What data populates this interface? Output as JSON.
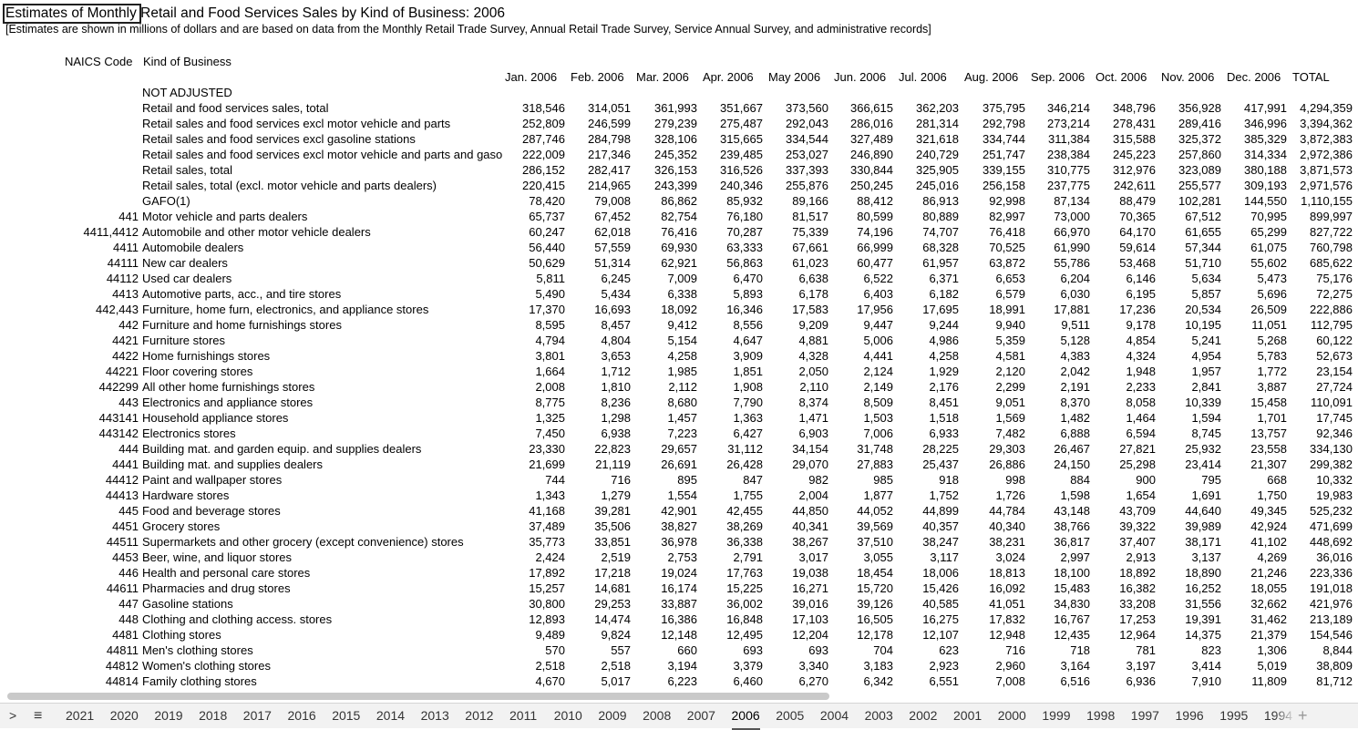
{
  "title": "Estimates of Monthly Retail and Food Services Sales by Kind of Business: 2006",
  "subtitle": "[Estimates are shown in millions of dollars and are based on data from the Monthly Retail Trade Survey, Annual Retail Trade Survey, Service Annual Survey, and administrative records]",
  "header": {
    "naics": "NAICS  Code",
    "kind": "Kind of Business",
    "months": [
      "Jan. 2006",
      "Feb. 2006",
      "Mar. 2006",
      "Apr. 2006",
      "May 2006",
      "Jun. 2006",
      "Jul. 2006",
      "Aug. 2006",
      "Sep. 2006",
      "Oct. 2006",
      "Nov. 2006",
      "Dec. 2006",
      "TOTAL"
    ]
  },
  "section_label": "NOT ADJUSTED",
  "rows": [
    {
      "code": "",
      "name": "Retail and food services sales, total",
      "values": [
        "318,546",
        "314,051",
        "361,993",
        "351,667",
        "373,560",
        "366,615",
        "362,203",
        "375,795",
        "346,214",
        "348,796",
        "356,928",
        "417,991",
        "4,294,359"
      ]
    },
    {
      "code": "",
      "name": "Retail sales and food services excl motor vehicle and parts",
      "values": [
        "252,809",
        "246,599",
        "279,239",
        "275,487",
        "292,043",
        "286,016",
        "281,314",
        "292,798",
        "273,214",
        "278,431",
        "289,416",
        "346,996",
        "3,394,362"
      ]
    },
    {
      "code": "",
      "name": "Retail sales and food services excl gasoline stations",
      "values": [
        "287,746",
        "284,798",
        "328,106",
        "315,665",
        "334,544",
        "327,489",
        "321,618",
        "334,744",
        "311,384",
        "315,588",
        "325,372",
        "385,329",
        "3,872,383"
      ]
    },
    {
      "code": "",
      "name": "Retail sales and food services excl motor vehicle and parts and gasoline stations",
      "values": [
        "222,009",
        "217,346",
        "245,352",
        "239,485",
        "253,027",
        "246,890",
        "240,729",
        "251,747",
        "238,384",
        "245,223",
        "257,860",
        "314,334",
        "2,972,386"
      ]
    },
    {
      "code": "",
      "name": "Retail sales, total",
      "values": [
        "286,152",
        "282,417",
        "326,153",
        "316,526",
        "337,393",
        "330,844",
        "325,905",
        "339,155",
        "310,775",
        "312,976",
        "323,089",
        "380,188",
        "3,871,573"
      ]
    },
    {
      "code": "",
      "name": "Retail sales, total (excl. motor vehicle and parts dealers)",
      "values": [
        "220,415",
        "214,965",
        "243,399",
        "240,346",
        "255,876",
        "250,245",
        "245,016",
        "256,158",
        "237,775",
        "242,611",
        "255,577",
        "309,193",
        "2,971,576"
      ]
    },
    {
      "code": "",
      "name": "GAFO(1)",
      "values": [
        "78,420",
        "79,008",
        "86,862",
        "85,932",
        "89,166",
        "88,412",
        "86,913",
        "92,998",
        "87,134",
        "88,479",
        "102,281",
        "144,550",
        "1,110,155"
      ]
    },
    {
      "code": "441",
      "name": "Motor vehicle and parts dealers",
      "values": [
        "65,737",
        "67,452",
        "82,754",
        "76,180",
        "81,517",
        "80,599",
        "80,889",
        "82,997",
        "73,000",
        "70,365",
        "67,512",
        "70,995",
        "899,997"
      ]
    },
    {
      "code": "4411,4412",
      "name": "Automobile and other motor vehicle dealers",
      "values": [
        "60,247",
        "62,018",
        "76,416",
        "70,287",
        "75,339",
        "74,196",
        "74,707",
        "76,418",
        "66,970",
        "64,170",
        "61,655",
        "65,299",
        "827,722"
      ]
    },
    {
      "code": "4411",
      "name": "Automobile dealers",
      "values": [
        "56,440",
        "57,559",
        "69,930",
        "63,333",
        "67,661",
        "66,999",
        "68,328",
        "70,525",
        "61,990",
        "59,614",
        "57,344",
        "61,075",
        "760,798"
      ]
    },
    {
      "code": "44111",
      "name": "New car dealers",
      "values": [
        "50,629",
        "51,314",
        "62,921",
        "56,863",
        "61,023",
        "60,477",
        "61,957",
        "63,872",
        "55,786",
        "53,468",
        "51,710",
        "55,602",
        "685,622"
      ]
    },
    {
      "code": "44112",
      "name": "Used car dealers",
      "values": [
        "5,811",
        "6,245",
        "7,009",
        "6,470",
        "6,638",
        "6,522",
        "6,371",
        "6,653",
        "6,204",
        "6,146",
        "5,634",
        "5,473",
        "75,176"
      ]
    },
    {
      "code": "4413",
      "name": "Automotive parts, acc., and tire stores",
      "values": [
        "5,490",
        "5,434",
        "6,338",
        "5,893",
        "6,178",
        "6,403",
        "6,182",
        "6,579",
        "6,030",
        "6,195",
        "5,857",
        "5,696",
        "72,275"
      ]
    },
    {
      "code": "442,443",
      "name": "Furniture, home furn, electronics, and appliance stores",
      "values": [
        "17,370",
        "16,693",
        "18,092",
        "16,346",
        "17,583",
        "17,956",
        "17,695",
        "18,991",
        "17,881",
        "17,236",
        "20,534",
        "26,509",
        "222,886"
      ]
    },
    {
      "code": "442",
      "name": "Furniture and home furnishings stores",
      "values": [
        "8,595",
        "8,457",
        "9,412",
        "8,556",
        "9,209",
        "9,447",
        "9,244",
        "9,940",
        "9,511",
        "9,178",
        "10,195",
        "11,051",
        "112,795"
      ]
    },
    {
      "code": "4421",
      "name": "Furniture stores",
      "values": [
        "4,794",
        "4,804",
        "5,154",
        "4,647",
        "4,881",
        "5,006",
        "4,986",
        "5,359",
        "5,128",
        "4,854",
        "5,241",
        "5,268",
        "60,122"
      ]
    },
    {
      "code": "4422",
      "name": "Home furnishings stores",
      "values": [
        "3,801",
        "3,653",
        "4,258",
        "3,909",
        "4,328",
        "4,441",
        "4,258",
        "4,581",
        "4,383",
        "4,324",
        "4,954",
        "5,783",
        "52,673"
      ]
    },
    {
      "code": "44221",
      "name": "Floor covering stores",
      "values": [
        "1,664",
        "1,712",
        "1,985",
        "1,851",
        "2,050",
        "2,124",
        "1,929",
        "2,120",
        "2,042",
        "1,948",
        "1,957",
        "1,772",
        "23,154"
      ]
    },
    {
      "code": "442299",
      "name": "All other home furnishings stores",
      "values": [
        "2,008",
        "1,810",
        "2,112",
        "1,908",
        "2,110",
        "2,149",
        "2,176",
        "2,299",
        "2,191",
        "2,233",
        "2,841",
        "3,887",
        "27,724"
      ]
    },
    {
      "code": "443",
      "name": "Electronics and appliance stores",
      "values": [
        "8,775",
        "8,236",
        "8,680",
        "7,790",
        "8,374",
        "8,509",
        "8,451",
        "9,051",
        "8,370",
        "8,058",
        "10,339",
        "15,458",
        "110,091"
      ]
    },
    {
      "code": "443141",
      "name": "Household appliance stores",
      "values": [
        "1,325",
        "1,298",
        "1,457",
        "1,363",
        "1,471",
        "1,503",
        "1,518",
        "1,569",
        "1,482",
        "1,464",
        "1,594",
        "1,701",
        "17,745"
      ]
    },
    {
      "code": "443142",
      "name": "Electronics stores",
      "values": [
        "7,450",
        "6,938",
        "7,223",
        "6,427",
        "6,903",
        "7,006",
        "6,933",
        "7,482",
        "6,888",
        "6,594",
        "8,745",
        "13,757",
        "92,346"
      ]
    },
    {
      "code": "444",
      "name": "Building mat. and garden equip. and supplies dealers",
      "values": [
        "23,330",
        "22,823",
        "29,657",
        "31,112",
        "34,154",
        "31,748",
        "28,225",
        "29,303",
        "26,467",
        "27,821",
        "25,932",
        "23,558",
        "334,130"
      ]
    },
    {
      "code": "4441",
      "name": "Building mat. and supplies dealers",
      "values": [
        "21,699",
        "21,119",
        "26,691",
        "26,428",
        "29,070",
        "27,883",
        "25,437",
        "26,886",
        "24,150",
        "25,298",
        "23,414",
        "21,307",
        "299,382"
      ]
    },
    {
      "code": "44412",
      "name": "Paint and wallpaper stores",
      "values": [
        "744",
        "716",
        "895",
        "847",
        "982",
        "985",
        "918",
        "998",
        "884",
        "900",
        "795",
        "668",
        "10,332"
      ]
    },
    {
      "code": "44413",
      "name": "Hardware stores",
      "values": [
        "1,343",
        "1,279",
        "1,554",
        "1,755",
        "2,004",
        "1,877",
        "1,752",
        "1,726",
        "1,598",
        "1,654",
        "1,691",
        "1,750",
        "19,983"
      ]
    },
    {
      "code": "445",
      "name": "Food and beverage stores",
      "values": [
        "41,168",
        "39,281",
        "42,901",
        "42,455",
        "44,850",
        "44,052",
        "44,899",
        "44,784",
        "43,148",
        "43,709",
        "44,640",
        "49,345",
        "525,232"
      ]
    },
    {
      "code": "4451",
      "name": "Grocery stores",
      "values": [
        "37,489",
        "35,506",
        "38,827",
        "38,269",
        "40,341",
        "39,569",
        "40,357",
        "40,340",
        "38,766",
        "39,322",
        "39,989",
        "42,924",
        "471,699"
      ]
    },
    {
      "code": "44511",
      "name": "Supermarkets and other grocery (except convenience) stores",
      "values": [
        "35,773",
        "33,851",
        "36,978",
        "36,338",
        "38,267",
        "37,510",
        "38,247",
        "38,231",
        "36,817",
        "37,407",
        "38,171",
        "41,102",
        "448,692"
      ]
    },
    {
      "code": "4453",
      "name": "Beer, wine, and liquor stores",
      "values": [
        "2,424",
        "2,519",
        "2,753",
        "2,791",
        "3,017",
        "3,055",
        "3,117",
        "3,024",
        "2,997",
        "2,913",
        "3,137",
        "4,269",
        "36,016"
      ]
    },
    {
      "code": "446",
      "name": "Health and personal care stores",
      "values": [
        "17,892",
        "17,218",
        "19,024",
        "17,763",
        "19,038",
        "18,454",
        "18,006",
        "18,813",
        "18,100",
        "18,892",
        "18,890",
        "21,246",
        "223,336"
      ]
    },
    {
      "code": "44611",
      "name": "Pharmacies and drug stores",
      "values": [
        "15,257",
        "14,681",
        "16,174",
        "15,225",
        "16,271",
        "15,720",
        "15,426",
        "16,092",
        "15,483",
        "16,382",
        "16,252",
        "18,055",
        "191,018"
      ]
    },
    {
      "code": "447",
      "name": "Gasoline stations",
      "values": [
        "30,800",
        "29,253",
        "33,887",
        "36,002",
        "39,016",
        "39,126",
        "40,585",
        "41,051",
        "34,830",
        "33,208",
        "31,556",
        "32,662",
        "421,976"
      ]
    },
    {
      "code": "448",
      "name": "Clothing and clothing access. stores",
      "values": [
        "12,893",
        "14,474",
        "16,386",
        "16,848",
        "17,103",
        "16,505",
        "16,275",
        "17,832",
        "16,767",
        "17,253",
        "19,391",
        "31,462",
        "213,189"
      ]
    },
    {
      "code": "4481",
      "name": "Clothing stores",
      "values": [
        "9,489",
        "9,824",
        "12,148",
        "12,495",
        "12,204",
        "12,178",
        "12,107",
        "12,948",
        "12,435",
        "12,964",
        "14,375",
        "21,379",
        "154,546"
      ]
    },
    {
      "code": "44811",
      "name": "Men's clothing stores",
      "values": [
        "570",
        "557",
        "660",
        "693",
        "693",
        "704",
        "623",
        "716",
        "718",
        "781",
        "823",
        "1,306",
        "8,844"
      ]
    },
    {
      "code": "44812",
      "name": "Women's clothing stores",
      "values": [
        "2,518",
        "2,518",
        "3,194",
        "3,379",
        "3,340",
        "3,183",
        "2,923",
        "2,960",
        "3,164",
        "3,197",
        "3,414",
        "5,019",
        "38,809"
      ]
    },
    {
      "code": "44814",
      "name": "Family clothing stores",
      "values": [
        "4,670",
        "5,017",
        "6,223",
        "6,460",
        "6,270",
        "6,342",
        "6,551",
        "7,008",
        "6,516",
        "6,936",
        "7,910",
        "11,809",
        "81,712"
      ]
    }
  ],
  "tabs": {
    "arrow": ">",
    "menu": "≡",
    "add": "+",
    "items": [
      "2021",
      "2020",
      "2019",
      "2018",
      "2017",
      "2016",
      "2015",
      "2014",
      "2013",
      "2012",
      "2011",
      "2010",
      "2009",
      "2008",
      "2007",
      "2006",
      "2005",
      "2004",
      "2003",
      "2002",
      "2001",
      "2000",
      "1999",
      "1998",
      "1997",
      "1996",
      "1995",
      "1994"
    ],
    "active": "2006"
  }
}
